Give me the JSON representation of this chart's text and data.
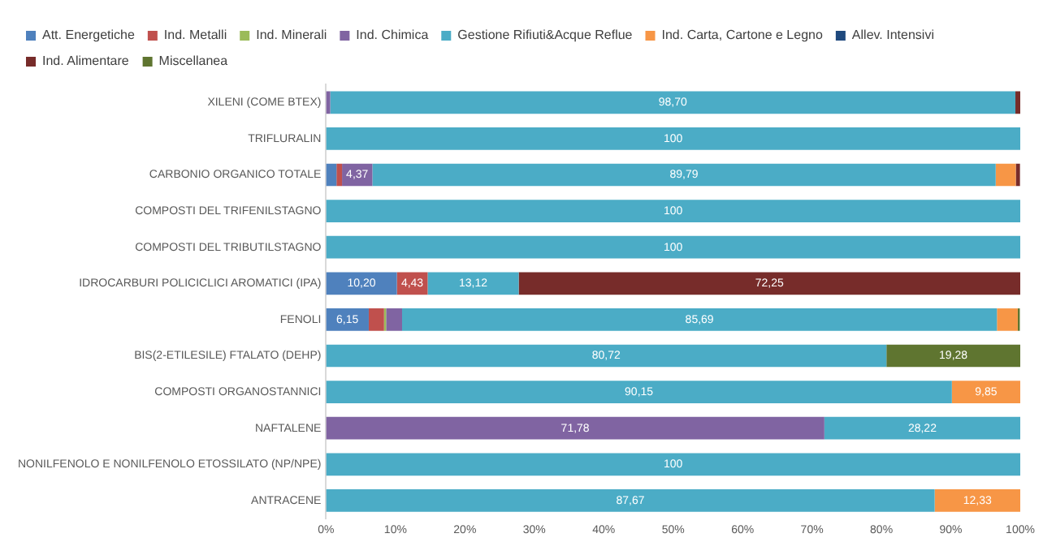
{
  "chart_data": {
    "type": "bar",
    "orientation": "horizontal",
    "stacked": true,
    "legend": "top",
    "grid": false,
    "categories": [
      "XILENI (COME BTEX)",
      "TRIFLURALIN",
      "CARBONIO ORGANICO TOTALE",
      "COMPOSTI DEL TRIFENILSTAGNO",
      "COMPOSTI DEL TRIBUTILSTAGNO",
      "IDROCARBURI POLICICLICI AROMATICI (IPA)",
      "FENOLI",
      "BIS(2-ETILESILE) FTALATO (DEHP)",
      "COMPOSTI ORGANOSTANNICI",
      "NAFTALENE",
      "NONILFENOLO E NONILFENOLO ETOSSILATO (NP/NPE)",
      "ANTRACENE"
    ],
    "xlim": [
      0,
      100
    ],
    "xticks": [
      {
        "value": 0,
        "label": "0%"
      },
      {
        "value": 10,
        "label": "10%"
      },
      {
        "value": 20,
        "label": "20%"
      },
      {
        "value": 30,
        "label": "30%"
      },
      {
        "value": 40,
        "label": "40%"
      },
      {
        "value": 50,
        "label": "50%"
      },
      {
        "value": 60,
        "label": "60%"
      },
      {
        "value": 70,
        "label": "70%"
      },
      {
        "value": 80,
        "label": "80%"
      },
      {
        "value": 90,
        "label": "90%"
      },
      {
        "value": 100,
        "label": "100%"
      }
    ],
    "series": [
      {
        "name": "Att. Energetiche",
        "color": "#4f81bd",
        "values": [
          null,
          null,
          1.5,
          null,
          null,
          10.2,
          6.15,
          null,
          null,
          null,
          null,
          null
        ],
        "value_labels": [
          null,
          null,
          null,
          null,
          null,
          "10,20",
          "6,15",
          null,
          null,
          null,
          null,
          null
        ]
      },
      {
        "name": "Ind. Metalli",
        "color": "#c0504d",
        "values": [
          null,
          null,
          0.8,
          null,
          null,
          4.43,
          2.2,
          null,
          null,
          null,
          null,
          null
        ],
        "value_labels": [
          null,
          null,
          null,
          null,
          null,
          "4,43",
          null,
          null,
          null,
          null,
          null,
          null
        ]
      },
      {
        "name": "Ind. Minerali",
        "color": "#9bbb59",
        "values": [
          null,
          null,
          null,
          null,
          null,
          null,
          0.3,
          null,
          null,
          null,
          null,
          null
        ]
      },
      {
        "name": "Ind. Chimica",
        "color": "#8064a2",
        "values": [
          0.6,
          null,
          4.37,
          null,
          null,
          null,
          2.3,
          null,
          null,
          71.78,
          null,
          null
        ],
        "value_labels": [
          null,
          null,
          "4,37",
          null,
          null,
          null,
          null,
          null,
          null,
          "71,78",
          null,
          null
        ]
      },
      {
        "name": "Gestione Rifiuti&Acque Reflue",
        "color": "#4bacc6",
        "values": [
          98.7,
          100,
          89.79,
          100,
          100,
          13.12,
          85.69,
          80.72,
          90.15,
          28.22,
          100,
          87.67
        ],
        "value_labels": [
          "98,70",
          "100",
          "89,79",
          "100",
          "100",
          "13,12",
          "85,69",
          "80,72",
          "90,15",
          "28,22",
          "100",
          "87,67"
        ]
      },
      {
        "name": "Ind. Carta, Cartone e Legno",
        "color": "#f79646",
        "values": [
          null,
          null,
          2.9,
          null,
          null,
          null,
          3.0,
          null,
          9.85,
          null,
          null,
          12.33
        ],
        "value_labels": [
          null,
          null,
          null,
          null,
          null,
          null,
          null,
          null,
          "9,85",
          null,
          null,
          "12,33"
        ]
      },
      {
        "name": "Allev. Intensivi",
        "color": "#1f497d",
        "values": [
          null,
          null,
          null,
          null,
          null,
          null,
          null,
          null,
          null,
          null,
          null,
          null
        ]
      },
      {
        "name": "Ind. Alimentare",
        "color": "#772c2a",
        "values": [
          0.7,
          null,
          0.6,
          null,
          null,
          72.25,
          null,
          null,
          null,
          null,
          null,
          null
        ],
        "value_labels": [
          null,
          null,
          null,
          null,
          null,
          "72,25",
          null,
          null,
          null,
          null,
          null,
          null
        ]
      },
      {
        "name": "Miscellanea",
        "color": "#5f7530",
        "values": [
          null,
          null,
          null,
          null,
          null,
          null,
          0.3,
          19.28,
          null,
          null,
          null,
          null
        ],
        "value_labels": [
          null,
          null,
          null,
          null,
          null,
          null,
          null,
          "19,28",
          null,
          null,
          null,
          null
        ]
      }
    ]
  }
}
